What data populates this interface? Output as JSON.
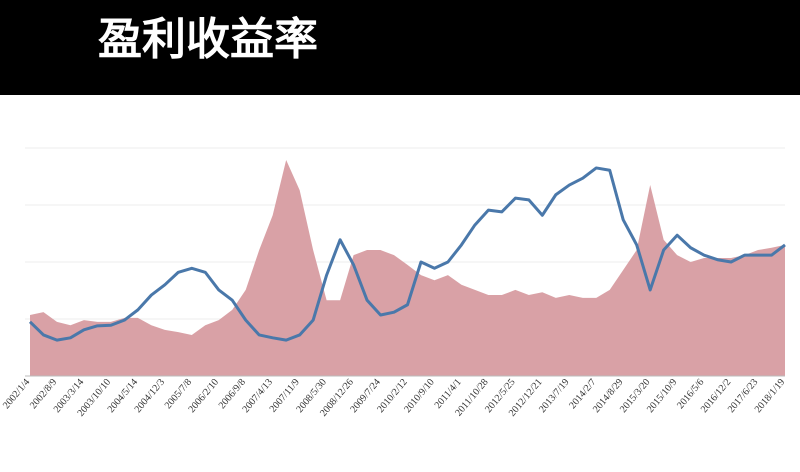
{
  "chart_data": {
    "type": "line",
    "title": "盈利收益率",
    "categories": [
      "2002/1/4",
      null,
      "2002/8/9",
      null,
      "2003/3/14",
      null,
      "2003/10/10",
      null,
      "2004/5/14",
      null,
      "2004/12/3",
      null,
      "2005/7/8",
      null,
      "2006/2/10",
      null,
      "2006/9/8",
      null,
      "2007/4/13",
      null,
      "2007/11/9",
      null,
      "2008/5/30",
      null,
      "2008/12/26",
      null,
      "2009/7/24",
      null,
      "2010/2/12",
      null,
      "2010/9/10",
      null,
      "2011/4/1",
      null,
      "2011/10/28",
      null,
      "2012/5/25",
      null,
      "2012/12/21",
      null,
      "2013/7/19",
      null,
      "2014/2/7",
      null,
      "2014/8/29",
      null,
      "2015/3/20",
      null,
      "2015/10/9",
      null,
      "2016/5/6",
      null,
      "2016/12/2",
      null,
      "2017/6/23",
      null,
      "2018/1/19"
    ],
    "series": [
      {
        "type": "area",
        "color": "#d9a1a6",
        "values": [
          1.07,
          1.12,
          0.95,
          0.89,
          0.98,
          0.95,
          0.95,
          1.02,
          1.02,
          0.89,
          0.81,
          0.77,
          0.72,
          0.89,
          0.98,
          1.16,
          1.51,
          2.21,
          2.82,
          3.79,
          3.26,
          2.21,
          1.33,
          1.33,
          2.12,
          2.21,
          2.21,
          2.12,
          1.95,
          1.77,
          1.68,
          1.77,
          1.6,
          1.51,
          1.42,
          1.42,
          1.51,
          1.42,
          1.47,
          1.37,
          1.42,
          1.37,
          1.37,
          1.51,
          1.86,
          2.21,
          3.35,
          2.39,
          2.12,
          2.0,
          2.07,
          2.07,
          2.07,
          2.12,
          2.21,
          2.25,
          2.3
        ]
      },
      {
        "type": "line",
        "color": "#4a78aa",
        "values": [
          0.95,
          0.72,
          0.63,
          0.67,
          0.81,
          0.88,
          0.89,
          0.98,
          1.16,
          1.42,
          1.6,
          1.82,
          1.89,
          1.82,
          1.51,
          1.33,
          0.98,
          0.72,
          0.67,
          0.63,
          0.72,
          0.98,
          1.77,
          2.39,
          1.95,
          1.33,
          1.07,
          1.12,
          1.25,
          2.0,
          1.89,
          2.0,
          2.3,
          2.65,
          2.91,
          2.88,
          3.12,
          3.09,
          2.82,
          3.18,
          3.35,
          3.47,
          3.65,
          3.61,
          2.74,
          2.3,
          1.51,
          2.21,
          2.47,
          2.25,
          2.12,
          2.04,
          2.0,
          2.12,
          2.12,
          2.12,
          2.3
        ]
      }
    ],
    "ylim": [
      0,
      4
    ],
    "yticks": [
      0,
      1,
      2,
      3,
      4
    ],
    "grid": true
  }
}
